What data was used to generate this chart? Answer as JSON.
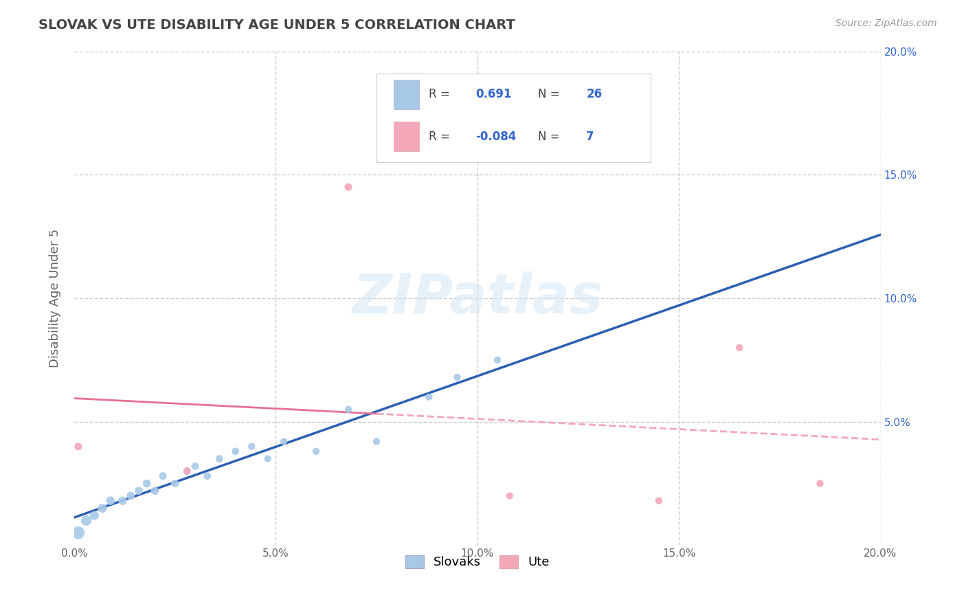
{
  "title": "SLOVAK VS UTE DISABILITY AGE UNDER 5 CORRELATION CHART",
  "source_text": "Source: ZipAtlas.com",
  "ylabel": "Disability Age Under 5",
  "xlim": [
    0.0,
    0.2
  ],
  "ylim": [
    0.0,
    0.2
  ],
  "xtick_labels": [
    "0.0%",
    "",
    "5.0%",
    "",
    "10.0%",
    "",
    "15.0%",
    "",
    "20.0%"
  ],
  "xtick_vals": [
    0.0,
    0.025,
    0.05,
    0.075,
    0.1,
    0.125,
    0.15,
    0.175,
    0.2
  ],
  "ytick_labels": [
    "5.0%",
    "10.0%",
    "15.0%",
    "20.0%"
  ],
  "ytick_vals": [
    0.05,
    0.1,
    0.15,
    0.2
  ],
  "slovak_color": "#a8c8e8",
  "ute_color": "#f4a7b9",
  "slovak_line_color": "#2b5fb4",
  "ute_line_solid_color": "#e87090",
  "ute_line_dash_color": "#f4a7b9",
  "legend_R_slovak": "0.691",
  "legend_N_slovak": "26",
  "legend_R_ute": "-0.084",
  "legend_N_ute": "7",
  "watermark": "ZIPatlas",
  "background_color": "#ffffff",
  "grid_color": "#cccccc",
  "slovak_scatter_x": [
    0.001,
    0.003,
    0.005,
    0.007,
    0.009,
    0.012,
    0.014,
    0.016,
    0.018,
    0.02,
    0.022,
    0.025,
    0.028,
    0.03,
    0.033,
    0.036,
    0.04,
    0.044,
    0.048,
    0.052,
    0.06,
    0.068,
    0.075,
    0.088,
    0.095,
    0.105
  ],
  "slovak_scatter_y": [
    0.005,
    0.01,
    0.012,
    0.015,
    0.018,
    0.018,
    0.02,
    0.022,
    0.025,
    0.022,
    0.028,
    0.025,
    0.03,
    0.032,
    0.028,
    0.035,
    0.038,
    0.04,
    0.035,
    0.042,
    0.038,
    0.055,
    0.042,
    0.06,
    0.068,
    0.075
  ],
  "ute_scatter_x": [
    0.001,
    0.028,
    0.068,
    0.108,
    0.145,
    0.165,
    0.185
  ],
  "ute_scatter_y": [
    0.04,
    0.03,
    0.145,
    0.02,
    0.018,
    0.08,
    0.025
  ],
  "slovak_dot_sizes": [
    180,
    120,
    90,
    90,
    80,
    80,
    70,
    70,
    70,
    70,
    65,
    65,
    65,
    60,
    60,
    60,
    60,
    55,
    55,
    55,
    55,
    55,
    55,
    55,
    55,
    55
  ],
  "ute_dot_sizes": [
    65,
    55,
    65,
    55,
    55,
    55,
    55
  ],
  "blue_text_color": "#3366cc",
  "dark_text_color": "#444444"
}
